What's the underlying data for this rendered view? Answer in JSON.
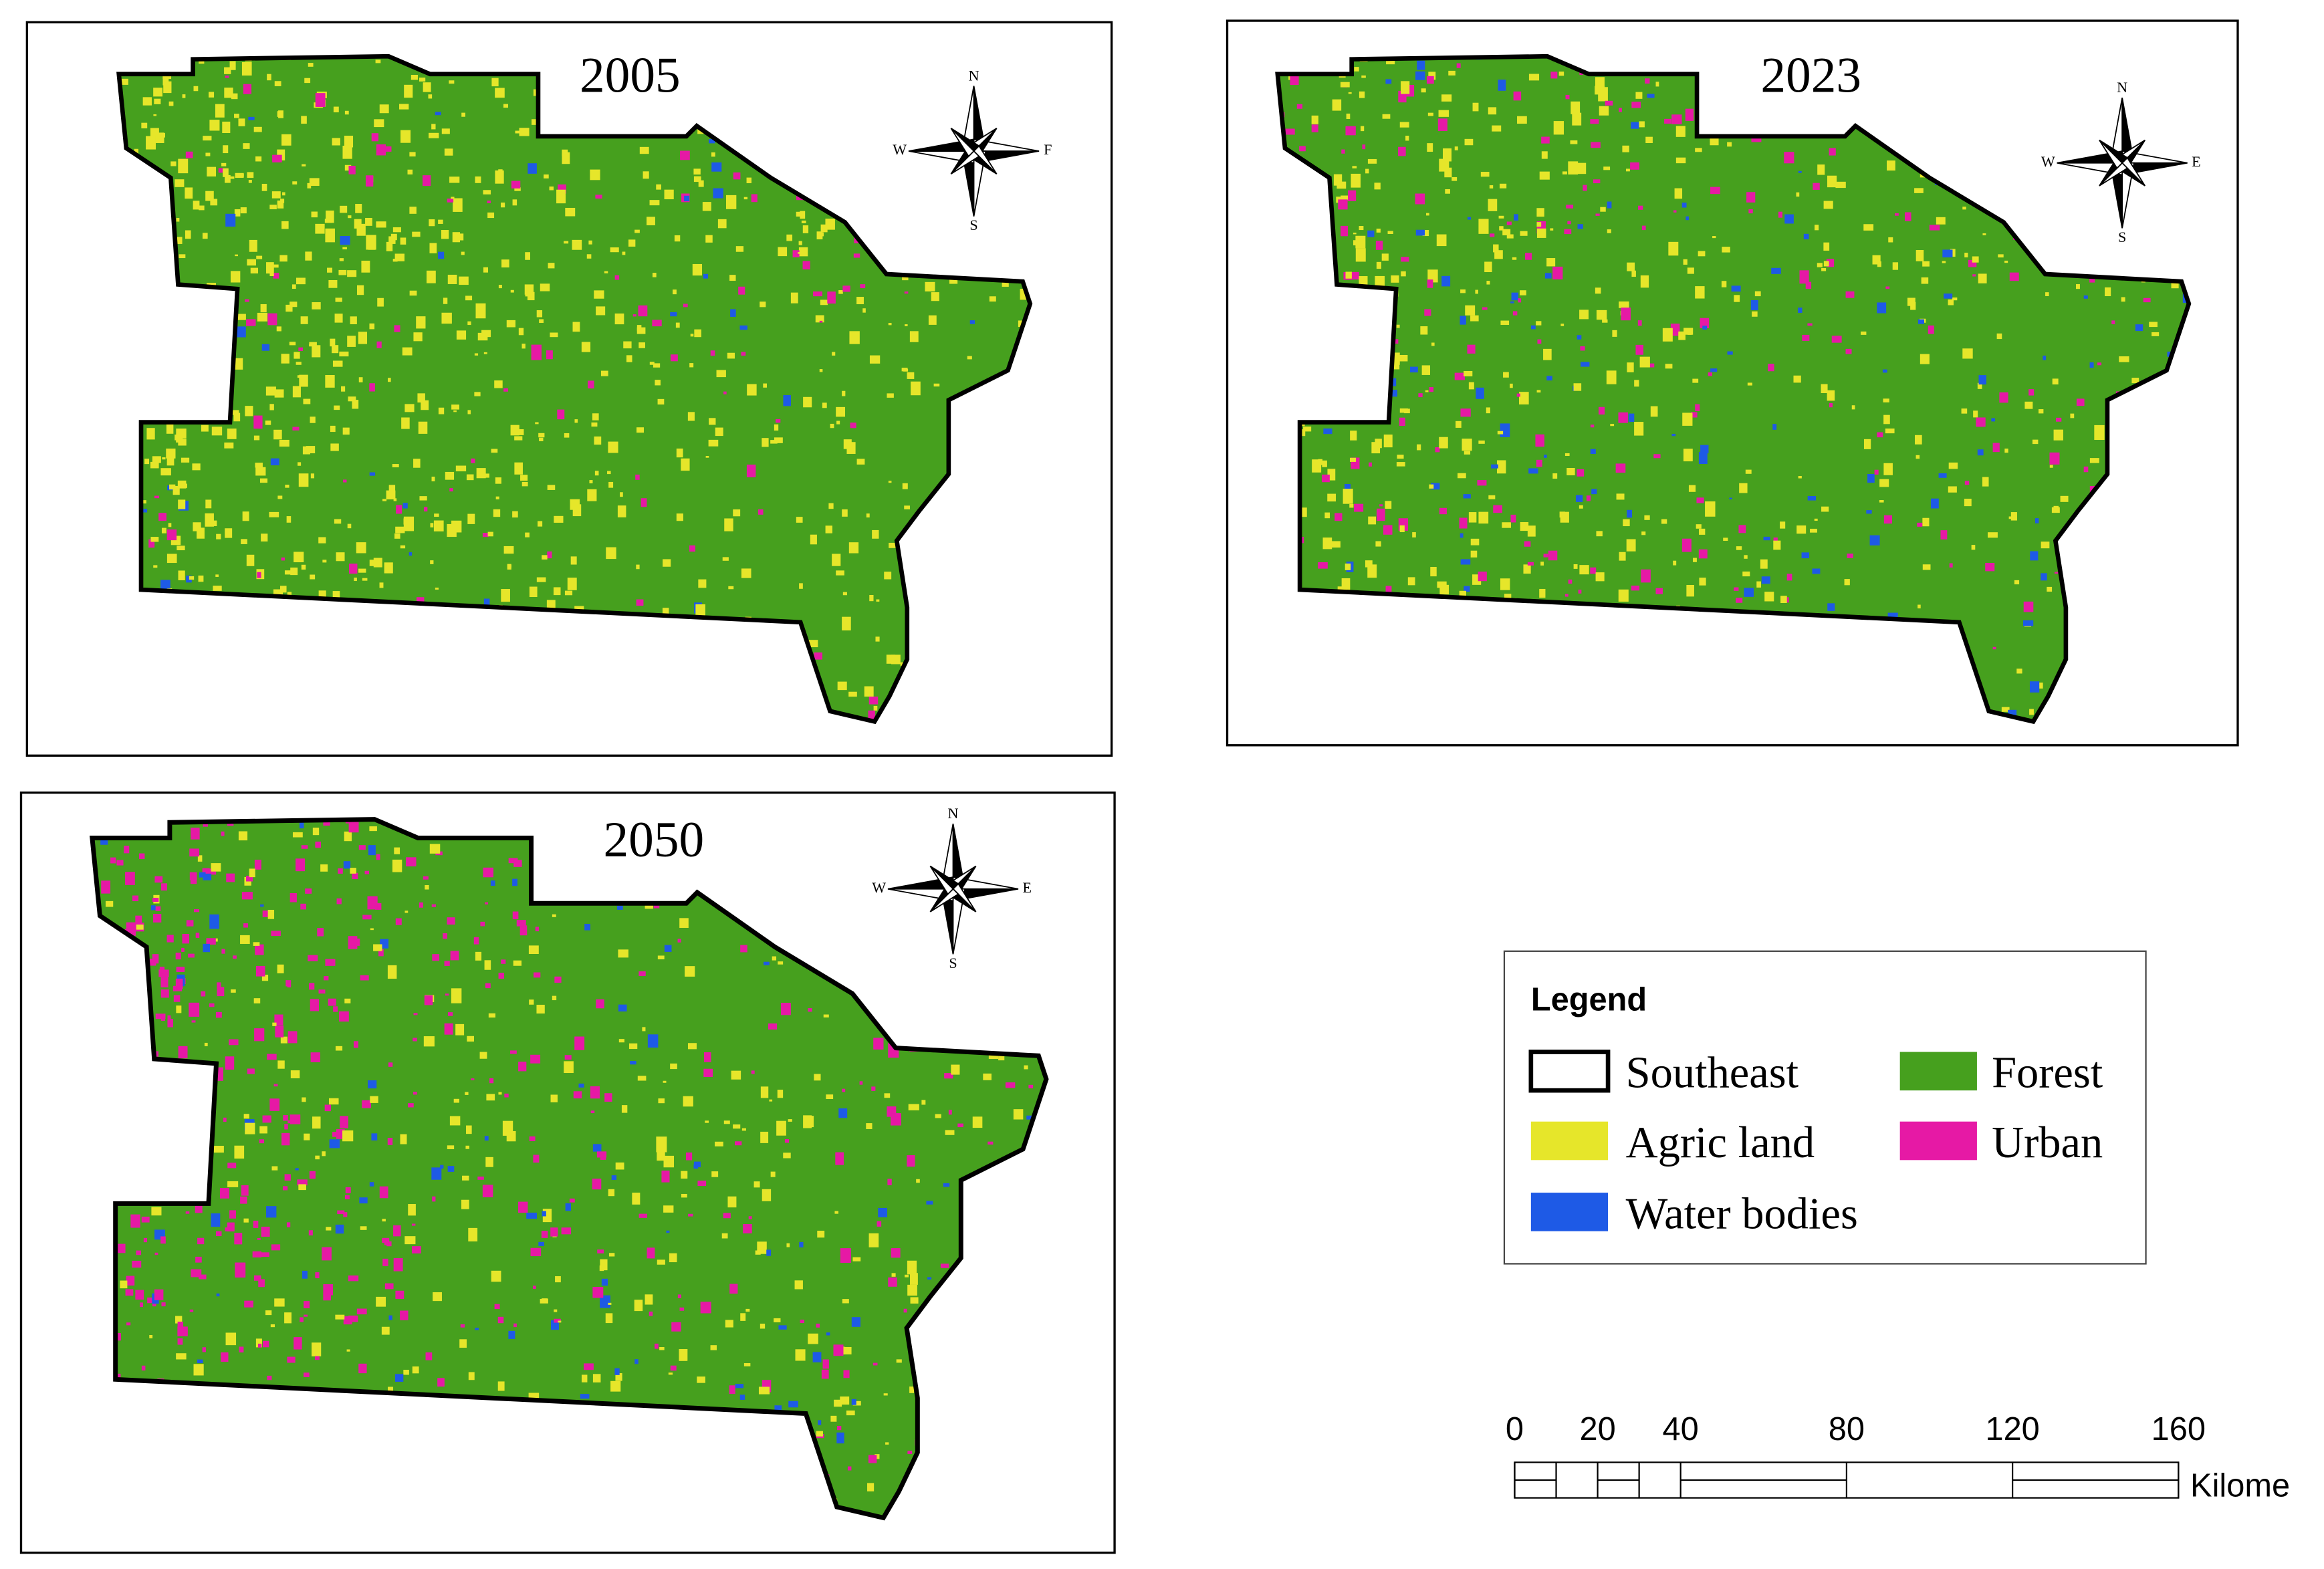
{
  "panels": [
    {
      "year": "2005",
      "compass": {
        "n": "N",
        "s": "S",
        "e": "F",
        "w": "W"
      }
    },
    {
      "year": "2023",
      "compass": {
        "n": "N",
        "s": "S",
        "e": "E",
        "w": "W"
      }
    },
    {
      "year": "2050",
      "compass": {
        "n": "N",
        "s": "S",
        "e": "E",
        "w": "W"
      }
    }
  ],
  "legend": {
    "title": "Legend",
    "items": [
      "Southeast",
      "Forest",
      "Agric land",
      "Urban",
      "Water bodies"
    ]
  },
  "scale_bar": {
    "ticks": [
      0,
      20,
      40,
      80,
      120,
      160
    ],
    "unit": "Kilome"
  }
}
